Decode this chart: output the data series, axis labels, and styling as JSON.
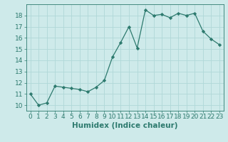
{
  "x": [
    0,
    1,
    2,
    3,
    4,
    5,
    6,
    7,
    8,
    9,
    10,
    11,
    12,
    13,
    14,
    15,
    16,
    17,
    18,
    19,
    20,
    21,
    22,
    23
  ],
  "y": [
    11.0,
    10.0,
    10.2,
    11.7,
    11.6,
    11.5,
    11.4,
    11.2,
    11.6,
    12.2,
    14.3,
    15.6,
    17.0,
    15.1,
    18.5,
    18.0,
    18.1,
    17.8,
    18.2,
    18.0,
    18.2,
    16.6,
    15.9,
    15.4
  ],
  "xlabel": "Humidex (Indice chaleur)",
  "ylim": [
    9.5,
    19.0
  ],
  "xlim": [
    -0.5,
    23.5
  ],
  "yticks": [
    10,
    11,
    12,
    13,
    14,
    15,
    16,
    17,
    18
  ],
  "xticks": [
    0,
    1,
    2,
    3,
    4,
    5,
    6,
    7,
    8,
    9,
    10,
    11,
    12,
    13,
    14,
    15,
    16,
    17,
    18,
    19,
    20,
    21,
    22,
    23
  ],
  "line_color": "#2d7a6e",
  "marker": "D",
  "marker_size": 2.2,
  "bg_color": "#ceeaea",
  "grid_color": "#b0d8d8",
  "tick_fontsize": 6.5,
  "xlabel_fontsize": 7.5
}
